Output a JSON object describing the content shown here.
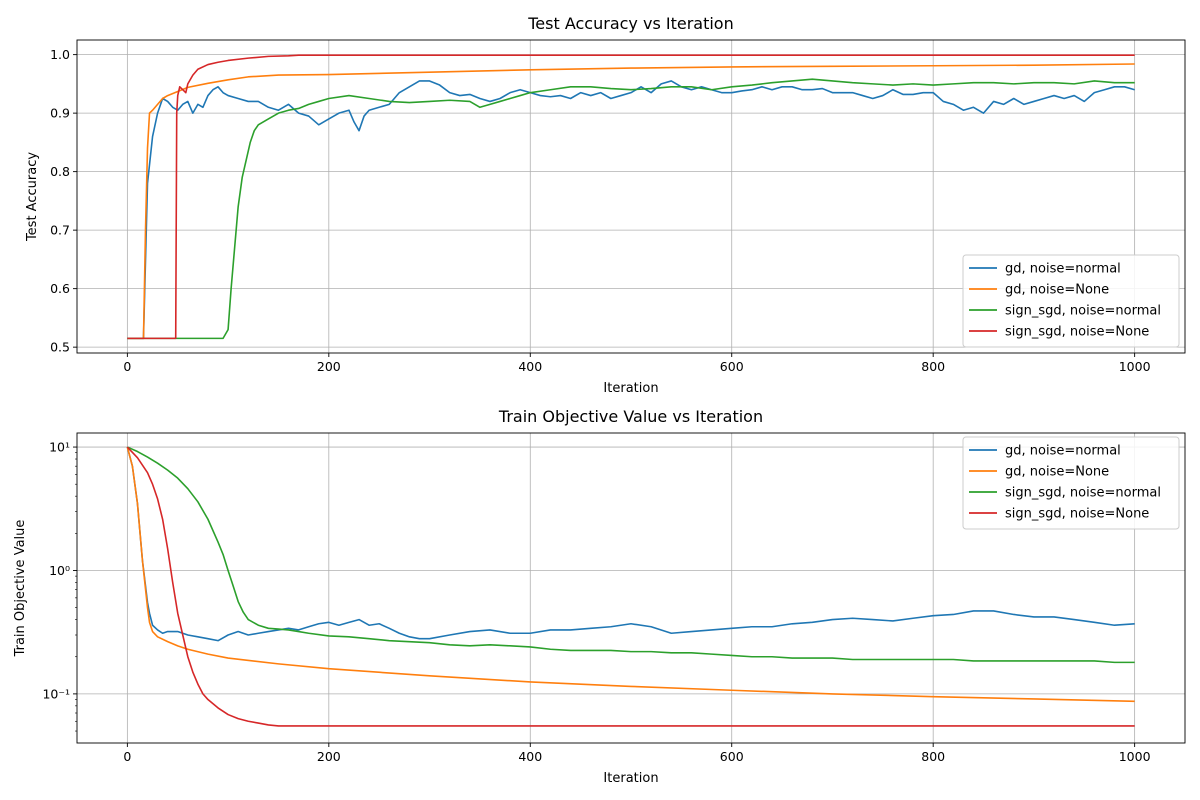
{
  "chart_data": [
    {
      "type": "line",
      "title": "Test Accuracy vs Iteration",
      "xlabel": "Iteration",
      "ylabel": "Test Accuracy",
      "xlim": [
        -50,
        1050
      ],
      "ylim": [
        0.49,
        1.025
      ],
      "yscale": "linear",
      "xticks": [
        0,
        200,
        400,
        600,
        800,
        1000
      ],
      "yticks": [
        0.5,
        0.6,
        0.7,
        0.8,
        0.9,
        1.0
      ],
      "ytick_labels": [
        "0.5",
        "0.6",
        "0.7",
        "0.8",
        "0.9",
        "1.0"
      ],
      "grid": true,
      "legend_position": "lower-right",
      "series": [
        {
          "name": "gd, noise=normal",
          "color": "#1f77b4",
          "x": [
            0,
            16,
            20,
            25,
            30,
            35,
            40,
            45,
            50,
            55,
            60,
            65,
            70,
            75,
            80,
            85,
            90,
            95,
            100,
            110,
            120,
            130,
            140,
            150,
            160,
            170,
            180,
            190,
            200,
            210,
            220,
            225,
            230,
            235,
            240,
            250,
            260,
            270,
            280,
            290,
            300,
            310,
            320,
            330,
            340,
            350,
            360,
            370,
            380,
            390,
            400,
            410,
            420,
            430,
            440,
            450,
            460,
            470,
            480,
            490,
            500,
            510,
            520,
            530,
            540,
            550,
            560,
            570,
            580,
            590,
            600,
            610,
            620,
            630,
            640,
            650,
            660,
            670,
            680,
            690,
            700,
            710,
            720,
            730,
            740,
            750,
            760,
            770,
            780,
            790,
            800,
            810,
            820,
            830,
            840,
            850,
            860,
            870,
            880,
            890,
            900,
            910,
            920,
            930,
            940,
            950,
            960,
            970,
            980,
            990,
            1000
          ],
          "y": [
            0.515,
            0.515,
            0.78,
            0.86,
            0.9,
            0.925,
            0.92,
            0.91,
            0.905,
            0.915,
            0.92,
            0.9,
            0.915,
            0.91,
            0.93,
            0.94,
            0.945,
            0.935,
            0.93,
            0.925,
            0.92,
            0.92,
            0.91,
            0.905,
            0.915,
            0.9,
            0.895,
            0.88,
            0.89,
            0.9,
            0.905,
            0.885,
            0.87,
            0.895,
            0.905,
            0.91,
            0.915,
            0.935,
            0.945,
            0.955,
            0.955,
            0.948,
            0.935,
            0.93,
            0.932,
            0.925,
            0.92,
            0.925,
            0.935,
            0.94,
            0.935,
            0.93,
            0.928,
            0.93,
            0.925,
            0.935,
            0.93,
            0.935,
            0.925,
            0.93,
            0.935,
            0.945,
            0.935,
            0.95,
            0.955,
            0.945,
            0.94,
            0.945,
            0.94,
            0.935,
            0.935,
            0.938,
            0.94,
            0.945,
            0.94,
            0.945,
            0.945,
            0.94,
            0.94,
            0.942,
            0.935,
            0.935,
            0.935,
            0.93,
            0.925,
            0.93,
            0.94,
            0.932,
            0.932,
            0.935,
            0.935,
            0.92,
            0.915,
            0.905,
            0.91,
            0.9,
            0.92,
            0.915,
            0.925,
            0.915,
            0.92,
            0.925,
            0.93,
            0.925,
            0.93,
            0.92,
            0.935,
            0.94,
            0.945,
            0.945,
            0.94
          ]
        },
        {
          "name": "gd, noise=None",
          "color": "#ff7f0e",
          "x": [
            0,
            16,
            18,
            20,
            22,
            25,
            30,
            35,
            40,
            50,
            60,
            80,
            100,
            120,
            150,
            200,
            300,
            400,
            500,
            600,
            700,
            800,
            900,
            1000
          ],
          "y": [
            0.515,
            0.515,
            0.7,
            0.84,
            0.9,
            0.905,
            0.915,
            0.925,
            0.93,
            0.937,
            0.944,
            0.951,
            0.957,
            0.962,
            0.965,
            0.966,
            0.97,
            0.974,
            0.977,
            0.979,
            0.98,
            0.981,
            0.982,
            0.984
          ]
        },
        {
          "name": "sign_sgd, noise=normal",
          "color": "#2ca02c",
          "x": [
            0,
            95,
            100,
            103,
            106,
            110,
            114,
            118,
            122,
            126,
            130,
            140,
            150,
            160,
            170,
            180,
            190,
            200,
            220,
            240,
            260,
            280,
            300,
            320,
            340,
            350,
            360,
            370,
            380,
            390,
            400,
            420,
            440,
            460,
            480,
            500,
            520,
            540,
            560,
            580,
            600,
            620,
            640,
            660,
            680,
            700,
            720,
            740,
            760,
            780,
            800,
            820,
            840,
            860,
            880,
            900,
            920,
            940,
            960,
            980,
            1000
          ],
          "y": [
            0.515,
            0.515,
            0.53,
            0.6,
            0.66,
            0.74,
            0.79,
            0.82,
            0.85,
            0.87,
            0.88,
            0.89,
            0.9,
            0.905,
            0.908,
            0.915,
            0.92,
            0.925,
            0.93,
            0.925,
            0.92,
            0.918,
            0.92,
            0.922,
            0.92,
            0.91,
            0.915,
            0.92,
            0.925,
            0.93,
            0.935,
            0.94,
            0.945,
            0.945,
            0.942,
            0.94,
            0.942,
            0.945,
            0.945,
            0.94,
            0.945,
            0.948,
            0.952,
            0.955,
            0.958,
            0.955,
            0.952,
            0.95,
            0.948,
            0.95,
            0.948,
            0.95,
            0.952,
            0.952,
            0.95,
            0.952,
            0.952,
            0.95,
            0.955,
            0.952,
            0.952
          ]
        },
        {
          "name": "sign_sgd, noise=None",
          "color": "#d62728",
          "x": [
            0,
            48,
            49,
            50,
            52,
            55,
            58,
            60,
            65,
            70,
            80,
            90,
            100,
            120,
            140,
            160,
            170,
            200,
            400,
            600,
            800,
            1000
          ],
          "y": [
            0.515,
            0.515,
            0.9,
            0.93,
            0.945,
            0.94,
            0.935,
            0.95,
            0.965,
            0.975,
            0.983,
            0.987,
            0.99,
            0.994,
            0.997,
            0.998,
            0.999,
            0.999,
            0.999,
            0.999,
            0.999,
            0.999
          ]
        }
      ]
    },
    {
      "type": "line",
      "title": "Train Objective Value vs Iteration",
      "xlabel": "Iteration",
      "ylabel": "Train Objective Value",
      "xlim": [
        -50,
        1050
      ],
      "ylim": [
        0.04,
        13
      ],
      "yscale": "log",
      "xticks": [
        0,
        200,
        400,
        600,
        800,
        1000
      ],
      "yticks": [
        0.1,
        1,
        10
      ],
      "ytick_labels": [
        "10⁻¹",
        "10⁰",
        "10¹"
      ],
      "grid": true,
      "legend_position": "upper-right",
      "series": [
        {
          "name": "gd, noise=normal",
          "color": "#1f77b4",
          "x": [
            0,
            5,
            10,
            15,
            20,
            22,
            25,
            30,
            35,
            40,
            50,
            60,
            70,
            80,
            90,
            100,
            110,
            120,
            130,
            140,
            150,
            160,
            170,
            180,
            190,
            200,
            210,
            220,
            230,
            240,
            250,
            260,
            270,
            280,
            290,
            300,
            320,
            340,
            360,
            380,
            400,
            420,
            440,
            460,
            480,
            500,
            520,
            540,
            560,
            580,
            600,
            620,
            640,
            660,
            680,
            700,
            720,
            740,
            760,
            780,
            800,
            820,
            840,
            860,
            880,
            900,
            920,
            940,
            960,
            980,
            1000
          ],
          "y": [
            10,
            7,
            3.5,
            1.2,
            0.55,
            0.45,
            0.36,
            0.33,
            0.31,
            0.32,
            0.32,
            0.3,
            0.29,
            0.28,
            0.27,
            0.3,
            0.32,
            0.3,
            0.31,
            0.32,
            0.33,
            0.34,
            0.33,
            0.35,
            0.37,
            0.38,
            0.36,
            0.38,
            0.4,
            0.36,
            0.37,
            0.34,
            0.31,
            0.29,
            0.28,
            0.28,
            0.3,
            0.32,
            0.33,
            0.31,
            0.31,
            0.33,
            0.33,
            0.34,
            0.35,
            0.37,
            0.35,
            0.31,
            0.32,
            0.33,
            0.34,
            0.35,
            0.35,
            0.37,
            0.38,
            0.4,
            0.41,
            0.4,
            0.39,
            0.41,
            0.43,
            0.44,
            0.47,
            0.47,
            0.44,
            0.42,
            0.42,
            0.4,
            0.38,
            0.36,
            0.37
          ]
        },
        {
          "name": "gd, noise=None",
          "color": "#ff7f0e",
          "x": [
            0,
            5,
            10,
            15,
            20,
            22,
            25,
            30,
            40,
            50,
            60,
            80,
            100,
            150,
            200,
            300,
            400,
            500,
            600,
            700,
            800,
            900,
            1000
          ],
          "y": [
            10,
            7,
            3.5,
            1.2,
            0.5,
            0.38,
            0.32,
            0.29,
            0.265,
            0.245,
            0.23,
            0.21,
            0.195,
            0.175,
            0.16,
            0.14,
            0.125,
            0.115,
            0.107,
            0.1,
            0.095,
            0.091,
            0.087
          ]
        },
        {
          "name": "sign_sgd, noise=normal",
          "color": "#2ca02c",
          "x": [
            0,
            10,
            20,
            30,
            40,
            50,
            60,
            70,
            80,
            90,
            95,
            100,
            105,
            110,
            115,
            120,
            130,
            140,
            150,
            160,
            170,
            180,
            200,
            220,
            240,
            260,
            280,
            300,
            320,
            340,
            360,
            380,
            400,
            420,
            440,
            460,
            480,
            500,
            520,
            540,
            560,
            580,
            600,
            620,
            640,
            660,
            680,
            700,
            720,
            740,
            760,
            780,
            800,
            820,
            840,
            860,
            880,
            900,
            920,
            940,
            960,
            980,
            1000
          ],
          "y": [
            10,
            9.2,
            8.3,
            7.4,
            6.5,
            5.6,
            4.6,
            3.6,
            2.6,
            1.7,
            1.35,
            1.0,
            0.75,
            0.56,
            0.46,
            0.4,
            0.36,
            0.34,
            0.335,
            0.33,
            0.32,
            0.31,
            0.295,
            0.29,
            0.28,
            0.27,
            0.265,
            0.26,
            0.25,
            0.245,
            0.25,
            0.245,
            0.24,
            0.23,
            0.225,
            0.225,
            0.225,
            0.22,
            0.22,
            0.215,
            0.215,
            0.21,
            0.205,
            0.2,
            0.2,
            0.195,
            0.195,
            0.195,
            0.19,
            0.19,
            0.19,
            0.19,
            0.19,
            0.19,
            0.185,
            0.185,
            0.185,
            0.185,
            0.185,
            0.185,
            0.185,
            0.18,
            0.18
          ]
        },
        {
          "name": "sign_sgd, noise=None",
          "color": "#d62728",
          "x": [
            0,
            10,
            20,
            25,
            30,
            35,
            40,
            45,
            50,
            55,
            60,
            65,
            70,
            75,
            80,
            90,
            100,
            110,
            120,
            130,
            140,
            150,
            200,
            400,
            600,
            800,
            1000
          ],
          "y": [
            10,
            8.2,
            6.2,
            5.0,
            3.8,
            2.6,
            1.5,
            0.8,
            0.45,
            0.3,
            0.2,
            0.15,
            0.12,
            0.1,
            0.09,
            0.077,
            0.068,
            0.063,
            0.06,
            0.058,
            0.056,
            0.055,
            0.055,
            0.055,
            0.055,
            0.055,
            0.055
          ]
        }
      ]
    }
  ]
}
